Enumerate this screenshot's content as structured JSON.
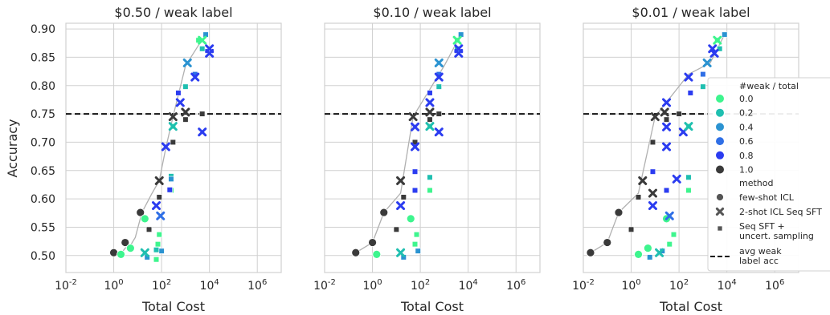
{
  "colors": {
    "0.0": "#3ef58e",
    "0.2": "#1fbfb0",
    "0.4": "#2b93d1",
    "0.6": "#2f6fe6",
    "0.8": "#2b3cf0",
    "1.0": "#3a3a3a",
    "connector": "#b0b0b0",
    "grid": "#d0d0d0",
    "hline": "#111111"
  },
  "chart_data": [
    {
      "type": "scatter",
      "title": "$0.50 / weak label",
      "xlabel": "Total Cost",
      "ylabel": "Accuracy",
      "xscale": "log",
      "xlim": [
        0.01,
        10000000
      ],
      "ylim": [
        0.47,
        0.91
      ],
      "xticks": [
        "10^-2",
        "10^0",
        "10^2",
        "10^4",
        "10^6"
      ],
      "yticks": [
        "0.50",
        "0.55",
        "0.60",
        "0.65",
        "0.70",
        "0.75",
        "0.80",
        "0.85",
        "0.90"
      ],
      "hline": 0.75,
      "frontier": [
        [
          1,
          0.505
        ],
        [
          2,
          0.503
        ],
        [
          3,
          0.513
        ],
        [
          5,
          0.518
        ],
        [
          8,
          0.532
        ],
        [
          15,
          0.576
        ],
        [
          40,
          0.61
        ],
        [
          80,
          0.632
        ],
        [
          150,
          0.69
        ],
        [
          300,
          0.745
        ],
        [
          1000,
          0.835
        ],
        [
          4000,
          0.875
        ],
        [
          8000,
          0.89
        ]
      ],
      "points": [
        {
          "m": "icl",
          "w": "1.0",
          "x": 1,
          "y": 0.505
        },
        {
          "m": "icl",
          "w": "1.0",
          "x": 3,
          "y": 0.523
        },
        {
          "m": "icl",
          "w": "1.0",
          "x": 13,
          "y": 0.576
        },
        {
          "m": "icl",
          "w": "0.0",
          "x": 2,
          "y": 0.502
        },
        {
          "m": "icl",
          "w": "0.0",
          "x": 5,
          "y": 0.513
        },
        {
          "m": "icl",
          "w": "0.0",
          "x": 20,
          "y": 0.565
        },
        {
          "m": "sft",
          "w": "1.0",
          "x": 30,
          "y": 0.546
        },
        {
          "m": "sft",
          "w": "1.0",
          "x": 80,
          "y": 0.603
        },
        {
          "m": "sft",
          "w": "1.0",
          "x": 300,
          "y": 0.7
        },
        {
          "m": "sft",
          "w": "1.0",
          "x": 1000,
          "y": 0.74
        },
        {
          "m": "sft",
          "w": "1.0",
          "x": 5000,
          "y": 0.75
        },
        {
          "m": "sft",
          "w": "0.4",
          "x": 25,
          "y": 0.497
        },
        {
          "m": "sft",
          "w": "0.4",
          "x": 100,
          "y": 0.508
        },
        {
          "m": "sft",
          "w": "0.2",
          "x": 60,
          "y": 0.51
        },
        {
          "m": "sft",
          "w": "0.0",
          "x": 60,
          "y": 0.493
        },
        {
          "m": "sft",
          "w": "0.0",
          "x": 70,
          "y": 0.52
        },
        {
          "m": "sft",
          "w": "0.0",
          "x": 80,
          "y": 0.537
        },
        {
          "m": "sft",
          "w": "0.2",
          "x": 250,
          "y": 0.64
        },
        {
          "m": "sft",
          "w": "0.0",
          "x": 250,
          "y": 0.615
        },
        {
          "m": "sft",
          "w": "0.8",
          "x": 220,
          "y": 0.616
        },
        {
          "m": "sft",
          "w": "0.4",
          "x": 250,
          "y": 0.635
        },
        {
          "m": "sft",
          "w": "0.0",
          "x": 300,
          "y": 0.728
        },
        {
          "m": "sft",
          "w": "0.2",
          "x": 1000,
          "y": 0.798
        },
        {
          "m": "sft",
          "w": "0.8",
          "x": 500,
          "y": 0.787
        },
        {
          "m": "sft",
          "w": "0.6",
          "x": 2500,
          "y": 0.82
        },
        {
          "m": "sft",
          "w": "0.0",
          "x": 3500,
          "y": 0.88
        },
        {
          "m": "sft",
          "w": "0.2",
          "x": 5000,
          "y": 0.865
        },
        {
          "m": "sft",
          "w": "0.4",
          "x": 7000,
          "y": 0.89
        },
        {
          "m": "seq",
          "w": "1.0",
          "x": 80,
          "y": 0.632
        },
        {
          "m": "seq",
          "w": "1.0",
          "x": 300,
          "y": 0.745
        },
        {
          "m": "seq",
          "w": "1.0",
          "x": 1000,
          "y": 0.753
        },
        {
          "m": "seq",
          "w": "0.8",
          "x": 60,
          "y": 0.588
        },
        {
          "m": "seq",
          "w": "0.6",
          "x": 90,
          "y": 0.57
        },
        {
          "m": "seq",
          "w": "0.8",
          "x": 150,
          "y": 0.692
        },
        {
          "m": "seq",
          "w": "0.8",
          "x": 600,
          "y": 0.77
        },
        {
          "m": "seq",
          "w": "0.8",
          "x": 2500,
          "y": 0.815
        },
        {
          "m": "seq",
          "w": "0.8",
          "x": 5000,
          "y": 0.718
        },
        {
          "m": "seq",
          "w": "0.8",
          "x": 10000,
          "y": 0.865
        },
        {
          "m": "seq",
          "w": "0.8",
          "x": 10000,
          "y": 0.857
        },
        {
          "m": "seq",
          "w": "0.4",
          "x": 1200,
          "y": 0.84
        },
        {
          "m": "seq",
          "w": "0.2",
          "x": 300,
          "y": 0.728
        },
        {
          "m": "seq",
          "w": "0.0",
          "x": 5000,
          "y": 0.88
        },
        {
          "m": "seq",
          "w": "0.2",
          "x": 20,
          "y": 0.505
        }
      ]
    },
    {
      "type": "scatter",
      "title": "$0.10 / weak label",
      "xlabel": "Total Cost",
      "xscale": "log",
      "xlim": [
        0.01,
        10000000
      ],
      "ylim": [
        0.47,
        0.91
      ],
      "xticks": [
        "10^-2",
        "10^0",
        "10^2",
        "10^4",
        "10^6"
      ],
      "hline": 0.75,
      "frontier": [
        [
          0.2,
          0.505
        ],
        [
          1,
          0.523
        ],
        [
          3,
          0.576
        ],
        [
          15,
          0.61
        ],
        [
          50,
          0.745
        ],
        [
          1000,
          0.835
        ],
        [
          5000,
          0.89
        ]
      ],
      "points": [
        {
          "m": "icl",
          "w": "1.0",
          "x": 0.2,
          "y": 0.505
        },
        {
          "m": "icl",
          "w": "1.0",
          "x": 1,
          "y": 0.523
        },
        {
          "m": "icl",
          "w": "1.0",
          "x": 3,
          "y": 0.576
        },
        {
          "m": "icl",
          "w": "0.0",
          "x": 1.5,
          "y": 0.502
        },
        {
          "m": "icl",
          "w": "0.0",
          "x": 40,
          "y": 0.565
        },
        {
          "m": "sft",
          "w": "1.0",
          "x": 10,
          "y": 0.546
        },
        {
          "m": "sft",
          "w": "1.0",
          "x": 20,
          "y": 0.603
        },
        {
          "m": "sft",
          "w": "1.0",
          "x": 60,
          "y": 0.7
        },
        {
          "m": "sft",
          "w": "1.0",
          "x": 250,
          "y": 0.74
        },
        {
          "m": "sft",
          "w": "1.0",
          "x": 600,
          "y": 0.75
        },
        {
          "m": "sft",
          "w": "0.4",
          "x": 20,
          "y": 0.497
        },
        {
          "m": "sft",
          "w": "0.4",
          "x": 80,
          "y": 0.508
        },
        {
          "m": "sft",
          "w": "0.0",
          "x": 60,
          "y": 0.52
        },
        {
          "m": "sft",
          "w": "0.0",
          "x": 70,
          "y": 0.537
        },
        {
          "m": "sft",
          "w": "0.8",
          "x": 60,
          "y": 0.615
        },
        {
          "m": "sft",
          "w": "0.8",
          "x": 60,
          "y": 0.648
        },
        {
          "m": "sft",
          "w": "0.2",
          "x": 250,
          "y": 0.638
        },
        {
          "m": "sft",
          "w": "0.0",
          "x": 250,
          "y": 0.615
        },
        {
          "m": "sft",
          "w": "0.0",
          "x": 250,
          "y": 0.728
        },
        {
          "m": "sft",
          "w": "0.8",
          "x": 250,
          "y": 0.787
        },
        {
          "m": "sft",
          "w": "0.2",
          "x": 600,
          "y": 0.798
        },
        {
          "m": "sft",
          "w": "0.6",
          "x": 600,
          "y": 0.82
        },
        {
          "m": "sft",
          "w": "0.0",
          "x": 3500,
          "y": 0.88
        },
        {
          "m": "sft",
          "w": "0.2",
          "x": 3500,
          "y": 0.865
        },
        {
          "m": "sft",
          "w": "0.4",
          "x": 5000,
          "y": 0.89
        },
        {
          "m": "seq",
          "w": "1.0",
          "x": 15,
          "y": 0.632
        },
        {
          "m": "seq",
          "w": "1.0",
          "x": 50,
          "y": 0.745
        },
        {
          "m": "seq",
          "w": "1.0",
          "x": 250,
          "y": 0.753
        },
        {
          "m": "seq",
          "w": "0.8",
          "x": 15,
          "y": 0.588
        },
        {
          "m": "seq",
          "w": "0.8",
          "x": 60,
          "y": 0.692
        },
        {
          "m": "seq",
          "w": "0.8",
          "x": 60,
          "y": 0.727
        },
        {
          "m": "seq",
          "w": "0.8",
          "x": 250,
          "y": 0.77
        },
        {
          "m": "seq",
          "w": "0.8",
          "x": 600,
          "y": 0.815
        },
        {
          "m": "seq",
          "w": "0.8",
          "x": 600,
          "y": 0.718
        },
        {
          "m": "seq",
          "w": "0.8",
          "x": 4000,
          "y": 0.865
        },
        {
          "m": "seq",
          "w": "0.8",
          "x": 4000,
          "y": 0.857
        },
        {
          "m": "seq",
          "w": "0.4",
          "x": 600,
          "y": 0.84
        },
        {
          "m": "seq",
          "w": "0.2",
          "x": 250,
          "y": 0.728
        },
        {
          "m": "seq",
          "w": "0.0",
          "x": 3500,
          "y": 0.88
        },
        {
          "m": "seq",
          "w": "0.2",
          "x": 15,
          "y": 0.505
        }
      ]
    },
    {
      "type": "scatter",
      "title": "$0.01 / weak label",
      "xlabel": "Total Cost",
      "xscale": "log",
      "xlim": [
        0.01,
        10000000
      ],
      "ylim": [
        0.47,
        0.91
      ],
      "xticks": [
        "10^-2",
        "10^0",
        "10^2",
        "10^4",
        "10^6"
      ],
      "hline": 0.75,
      "frontier": [
        [
          0.02,
          0.505
        ],
        [
          0.1,
          0.523
        ],
        [
          0.3,
          0.576
        ],
        [
          2,
          0.61
        ],
        [
          10,
          0.745
        ],
        [
          250,
          0.82
        ],
        [
          2000,
          0.84
        ],
        [
          8000,
          0.89
        ]
      ],
      "points": [
        {
          "m": "icl",
          "w": "1.0",
          "x": 0.02,
          "y": 0.505
        },
        {
          "m": "icl",
          "w": "1.0",
          "x": 0.1,
          "y": 0.523
        },
        {
          "m": "icl",
          "w": "1.0",
          "x": 0.3,
          "y": 0.576
        },
        {
          "m": "icl",
          "w": "0.0",
          "x": 2,
          "y": 0.502
        },
        {
          "m": "icl",
          "w": "0.0",
          "x": 5,
          "y": 0.513
        },
        {
          "m": "icl",
          "w": "0.0",
          "x": 30,
          "y": 0.565
        },
        {
          "m": "sft",
          "w": "1.0",
          "x": 1,
          "y": 0.546
        },
        {
          "m": "sft",
          "w": "1.0",
          "x": 2,
          "y": 0.603
        },
        {
          "m": "sft",
          "w": "1.0",
          "x": 8,
          "y": 0.7
        },
        {
          "m": "sft",
          "w": "1.0",
          "x": 30,
          "y": 0.74
        },
        {
          "m": "sft",
          "w": "1.0",
          "x": 100,
          "y": 0.75
        },
        {
          "m": "sft",
          "w": "0.4",
          "x": 6,
          "y": 0.497
        },
        {
          "m": "sft",
          "w": "0.4",
          "x": 20,
          "y": 0.508
        },
        {
          "m": "sft",
          "w": "0.0",
          "x": 40,
          "y": 0.52
        },
        {
          "m": "sft",
          "w": "0.0",
          "x": 60,
          "y": 0.537
        },
        {
          "m": "sft",
          "w": "0.8",
          "x": 8,
          "y": 0.648
        },
        {
          "m": "sft",
          "w": "0.8",
          "x": 30,
          "y": 0.615
        },
        {
          "m": "sft",
          "w": "0.2",
          "x": 250,
          "y": 0.638
        },
        {
          "m": "sft",
          "w": "0.0",
          "x": 250,
          "y": 0.615
        },
        {
          "m": "sft",
          "w": "0.0",
          "x": 250,
          "y": 0.728
        },
        {
          "m": "sft",
          "w": "0.8",
          "x": 300,
          "y": 0.787
        },
        {
          "m": "sft",
          "w": "0.2",
          "x": 1000,
          "y": 0.798
        },
        {
          "m": "sft",
          "w": "0.6",
          "x": 1000,
          "y": 0.82
        },
        {
          "m": "sft",
          "w": "0.0",
          "x": 4000,
          "y": 0.88
        },
        {
          "m": "sft",
          "w": "0.2",
          "x": 5000,
          "y": 0.865
        },
        {
          "m": "sft",
          "w": "0.4",
          "x": 8000,
          "y": 0.89
        },
        {
          "m": "seq",
          "w": "1.0",
          "x": 3,
          "y": 0.632
        },
        {
          "m": "seq",
          "w": "1.0",
          "x": 10,
          "y": 0.745
        },
        {
          "m": "seq",
          "w": "1.0",
          "x": 25,
          "y": 0.753
        },
        {
          "m": "seq",
          "w": "0.8",
          "x": 8,
          "y": 0.588
        },
        {
          "m": "seq",
          "w": "0.8",
          "x": 30,
          "y": 0.692
        },
        {
          "m": "seq",
          "w": "0.8",
          "x": 30,
          "y": 0.727
        },
        {
          "m": "seq",
          "w": "0.8",
          "x": 30,
          "y": 0.77
        },
        {
          "m": "seq",
          "w": "0.8",
          "x": 150,
          "y": 0.718
        },
        {
          "m": "seq",
          "w": "0.8",
          "x": 250,
          "y": 0.815
        },
        {
          "m": "seq",
          "w": "0.8",
          "x": 2500,
          "y": 0.865
        },
        {
          "m": "seq",
          "w": "0.8",
          "x": 3000,
          "y": 0.857
        },
        {
          "m": "seq",
          "w": "0.4",
          "x": 1500,
          "y": 0.84
        },
        {
          "m": "seq",
          "w": "0.2",
          "x": 250,
          "y": 0.728
        },
        {
          "m": "seq",
          "w": "0.0",
          "x": 4000,
          "y": 0.88
        },
        {
          "m": "seq",
          "w": "0.8",
          "x": 80,
          "y": 0.635
        },
        {
          "m": "seq",
          "w": "1.0",
          "x": 8,
          "y": 0.61
        },
        {
          "m": "seq",
          "w": "0.2",
          "x": 15,
          "y": 0.505
        },
        {
          "m": "seq",
          "w": "0.6",
          "x": 40,
          "y": 0.57
        }
      ]
    }
  ],
  "legend": {
    "hue_title": "#weak / total",
    "hue_entries": [
      "0.0",
      "0.2",
      "0.4",
      "0.6",
      "0.8",
      "1.0"
    ],
    "method_title": "method",
    "methods": [
      {
        "key": "icl",
        "label": "few-shot ICL"
      },
      {
        "key": "seq",
        "label": "2-shot ICL Seq SFT"
      },
      {
        "key": "sft",
        "label_line1": "Seq SFT +",
        "label_line2": "uncert. sampling"
      }
    ],
    "hline_label_line1": "avg weak",
    "hline_label_line2": "label acc"
  }
}
